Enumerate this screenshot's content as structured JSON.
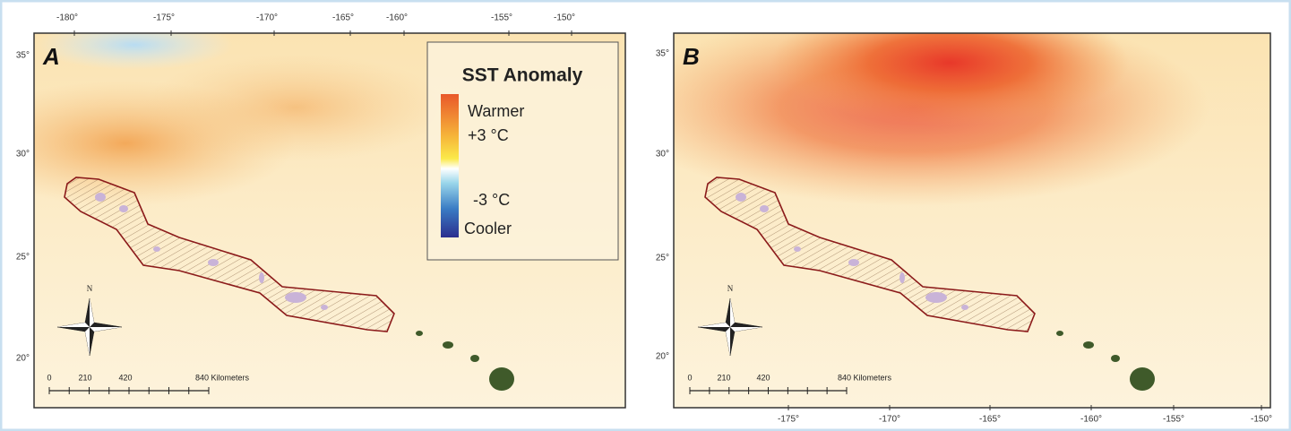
{
  "panels": [
    {
      "label": "A",
      "top_ticks": [
        "-180°",
        "-175°",
        "-170°",
        "-165°",
        "-160°",
        "-155°",
        "-150°"
      ],
      "left_ticks": [
        "35°",
        "30°",
        "25°",
        "20°"
      ],
      "scale_bar": [
        "0",
        "210",
        "420",
        "840 Kilometers"
      ],
      "north": "N",
      "legend": {
        "title": "SST Anomaly",
        "warm": "Warmer",
        "warm_value": "+3 °C",
        "cool_value": "-3 °C",
        "cool": "Cooler"
      }
    },
    {
      "label": "B",
      "left_ticks": [
        "35°",
        "30°",
        "25°",
        "20°"
      ],
      "bottom_ticks": [
        "-175°",
        "-170°",
        "-165°",
        "-160°",
        "-155°",
        "-150°"
      ],
      "scale_bar": [
        "0",
        "210",
        "420",
        "840 Kilometers"
      ],
      "north": "N"
    }
  ]
}
